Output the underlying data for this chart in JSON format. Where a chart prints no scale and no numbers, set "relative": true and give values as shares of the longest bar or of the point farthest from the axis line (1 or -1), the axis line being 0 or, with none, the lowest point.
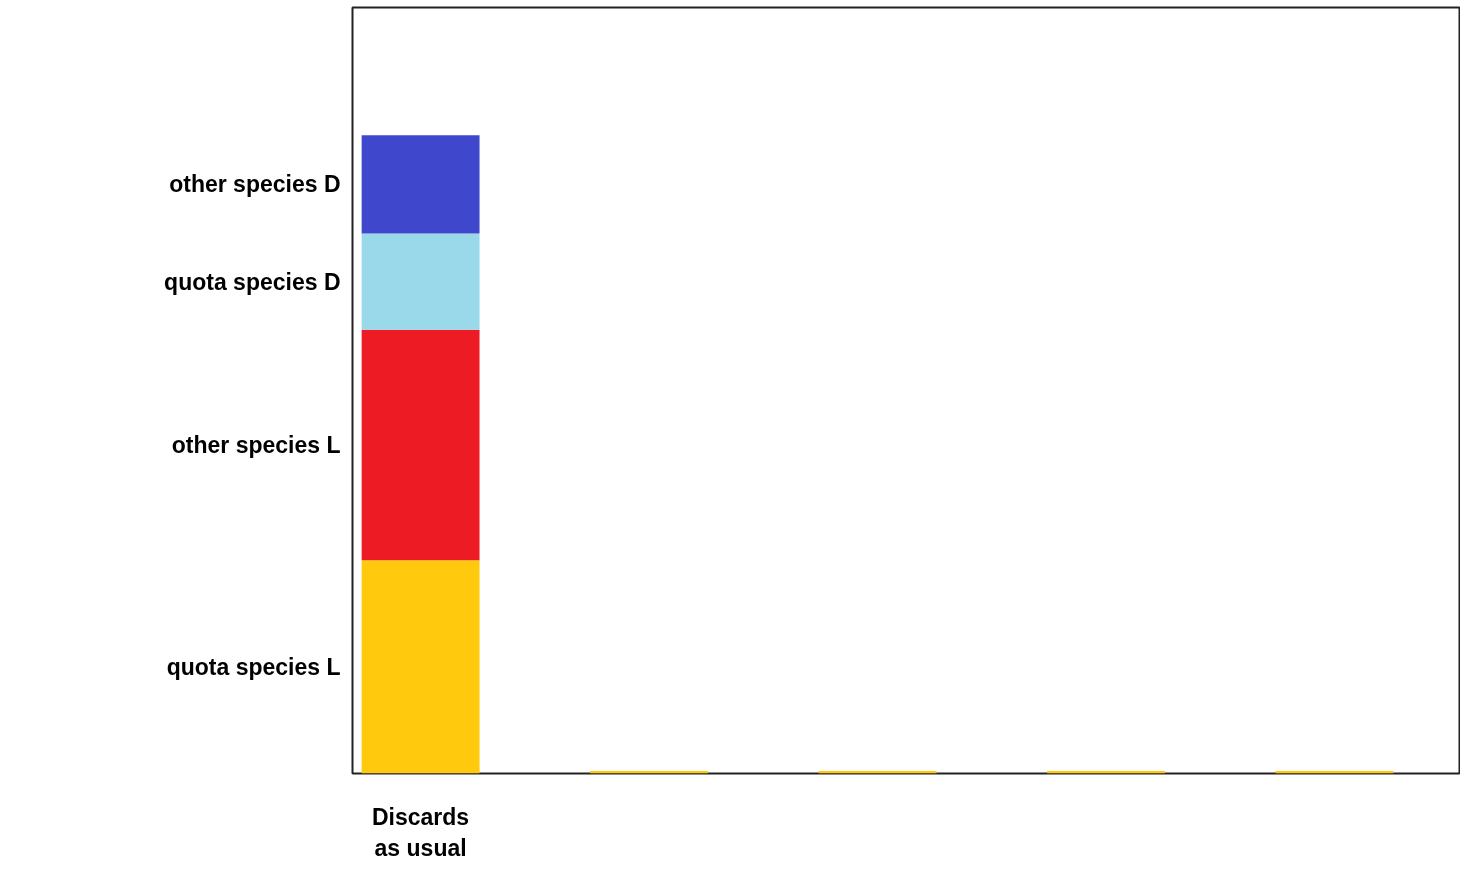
{
  "chart_data": {
    "type": "bar",
    "stacked": true,
    "relative": true,
    "grid": false,
    "categories": [
      "Discards\nas usual",
      null,
      null,
      null,
      null
    ],
    "series": [
      {
        "name": "quota species L",
        "color": "#ffc90e",
        "values": [
          0.334,
          0.004,
          0.004,
          0.004,
          0.004
        ]
      },
      {
        "name": "other species L",
        "color": "#ed1c24",
        "values": [
          0.361,
          0,
          0,
          0,
          0
        ]
      },
      {
        "name": "quota species D",
        "color": "#99d9ea",
        "values": [
          0.151,
          0,
          0,
          0,
          0
        ]
      },
      {
        "name": "other species D",
        "color": "#3f48cc",
        "values": [
          0.154,
          0,
          0,
          0,
          0
        ]
      }
    ]
  }
}
